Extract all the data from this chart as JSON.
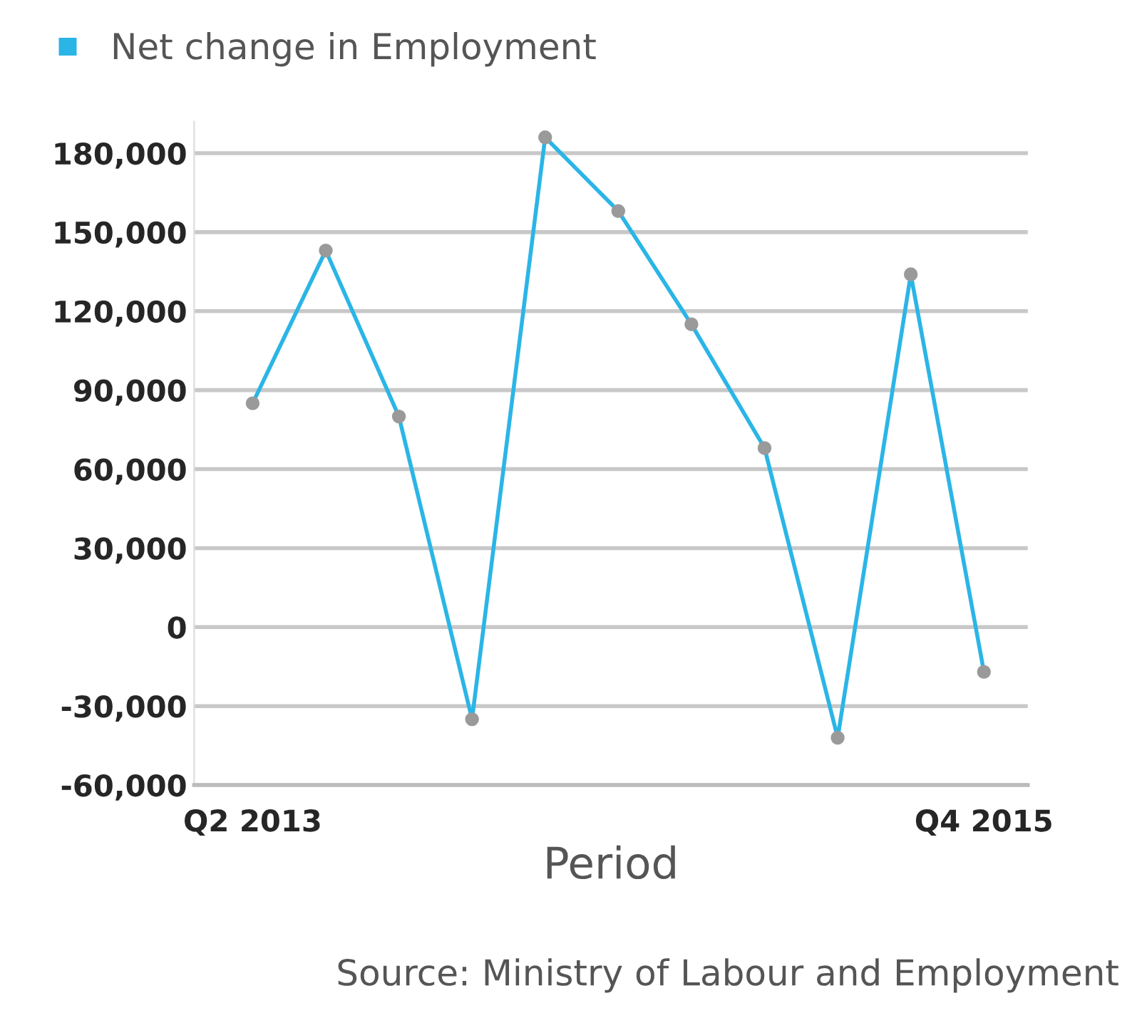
{
  "chart_data": {
    "type": "line",
    "xlabel": "Period",
    "annotations": [
      "Source: Ministry of Labour and Employment"
    ],
    "categories": [
      "Q2 2013",
      null,
      null,
      null,
      null,
      null,
      null,
      null,
      null,
      null,
      "Q4 2015"
    ],
    "series": [
      {
        "name": "Net change in Employment",
        "color": "#2bb5e6",
        "values": [
          85000,
          143000,
          80000,
          -35000,
          186000,
          158000,
          115000,
          68000,
          -42000,
          134000,
          -17000
        ]
      }
    ],
    "ylim": [
      -60000,
      192000
    ],
    "yticks": [
      {
        "value": -60000,
        "label": "-60,000"
      },
      {
        "value": -30000,
        "label": "-30,000"
      },
      0,
      {
        "value": 30000,
        "label": "30,000"
      },
      {
        "value": 60000,
        "label": "60,000"
      },
      {
        "value": 90000,
        "label": "90,000"
      },
      {
        "value": 120000,
        "label": "120,000"
      },
      {
        "value": 150000,
        "label": "150,000"
      },
      {
        "value": 180000,
        "label": "180,000"
      }
    ],
    "grid": "y",
    "legend": "top left",
    "marker": "circle",
    "line_style": "solid"
  }
}
